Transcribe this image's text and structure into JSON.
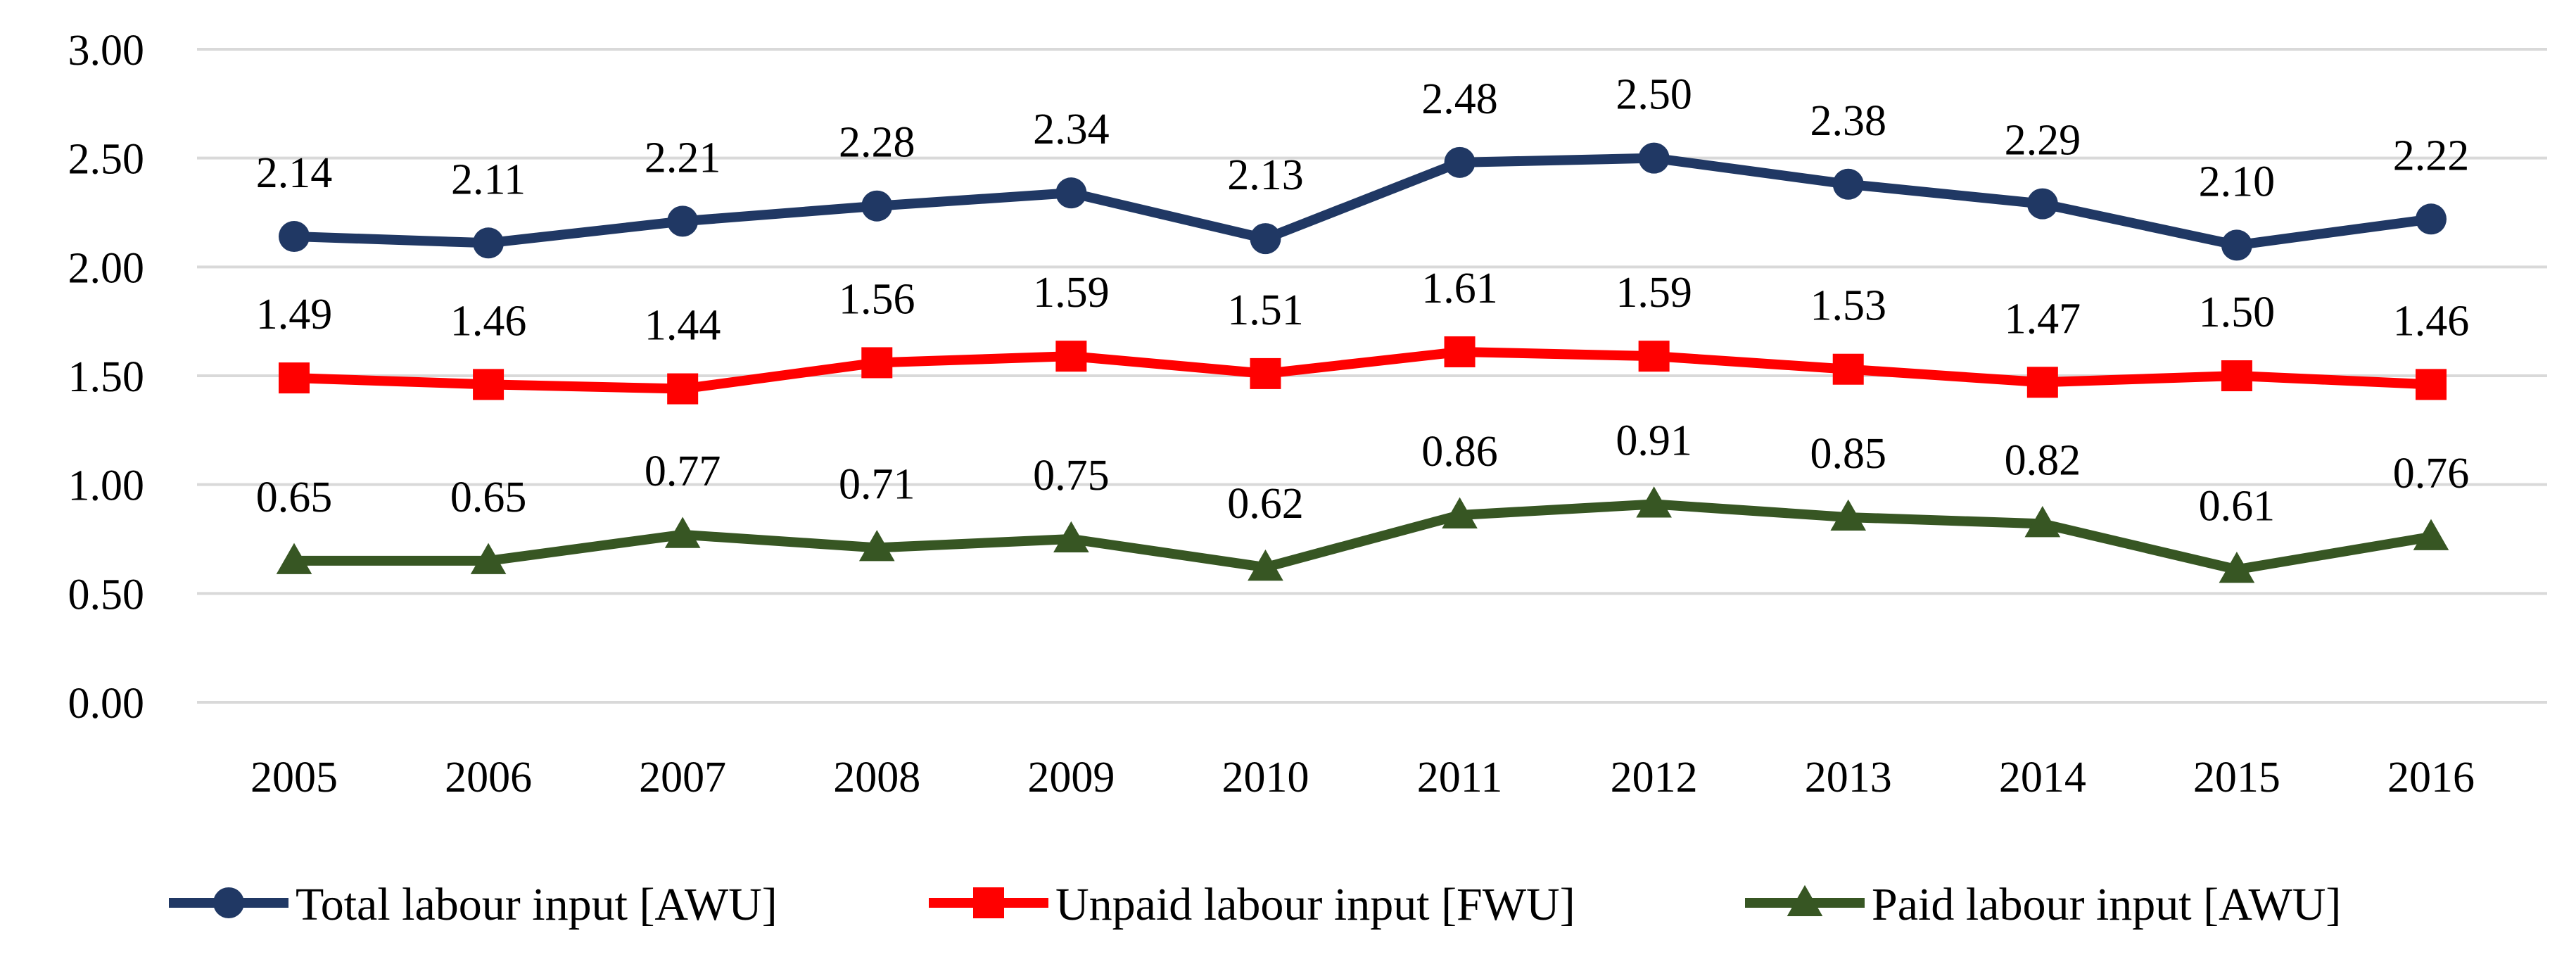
{
  "chart_data": {
    "type": "line",
    "title": "",
    "xlabel": "",
    "ylabel": "",
    "x": [
      "2005",
      "2006",
      "2007",
      "2008",
      "2009",
      "2010",
      "2011",
      "2012",
      "2013",
      "2014",
      "2015",
      "2016"
    ],
    "ylim": [
      0,
      3
    ],
    "yticks": [
      "0.00",
      "0.50",
      "1.00",
      "1.50",
      "2.00",
      "2.50",
      "3.00"
    ],
    "grid": true,
    "legend_position": "bottom",
    "series": [
      {
        "name": "Total labour input [AWU]",
        "color": "#203864",
        "marker": "circle",
        "values": [
          2.14,
          2.11,
          2.21,
          2.28,
          2.34,
          2.13,
          2.48,
          2.5,
          2.38,
          2.29,
          2.1,
          2.22
        ],
        "labels": [
          "2.14",
          "2.11",
          "2.21",
          "2.28",
          "2.34",
          "2.13",
          "2.48",
          "2.50",
          "2.38",
          "2.29",
          "2.10",
          "2.22"
        ]
      },
      {
        "name": "Unpaid labour input [FWU]",
        "color": "#ff0000",
        "marker": "square",
        "values": [
          1.49,
          1.46,
          1.44,
          1.56,
          1.59,
          1.51,
          1.61,
          1.59,
          1.53,
          1.47,
          1.5,
          1.46
        ],
        "labels": [
          "1.49",
          "1.46",
          "1.44",
          "1.56",
          "1.59",
          "1.51",
          "1.61",
          "1.59",
          "1.53",
          "1.47",
          "1.50",
          "1.46"
        ]
      },
      {
        "name": "Paid labour input [AWU]",
        "color": "#375623",
        "marker": "triangle",
        "values": [
          0.65,
          0.65,
          0.77,
          0.71,
          0.75,
          0.62,
          0.86,
          0.91,
          0.85,
          0.82,
          0.61,
          0.76
        ],
        "labels": [
          "0.65",
          "0.65",
          "0.77",
          "0.71",
          "0.75",
          "0.62",
          "0.86",
          "0.91",
          "0.85",
          "0.82",
          "0.61",
          "0.76"
        ]
      }
    ]
  }
}
